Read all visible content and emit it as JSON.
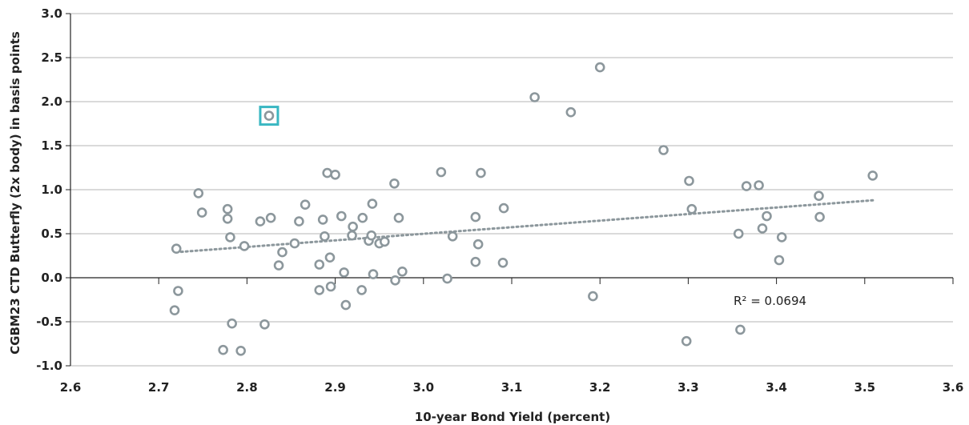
{
  "chart_data": {
    "type": "scatter",
    "xlabel": "10-year Bond Yield (percent)",
    "ylabel": "CGBM23 CTD Butterfly (2x body) in basis points",
    "xlim": [
      2.6,
      3.6
    ],
    "ylim": [
      -1.0,
      3.0
    ],
    "x_ticks": [
      "2.6",
      "2.7",
      "2.8",
      "2.9",
      "3.0",
      "3.1",
      "3.2",
      "3.3",
      "3.4",
      "3.5",
      "3.6"
    ],
    "y_ticks": [
      "3.0",
      "2.5",
      "2.0",
      "1.5",
      "1.0",
      "0.5",
      "0.0",
      "-0.5",
      "-1.0"
    ],
    "grid": "horizontal",
    "point_color": "#8c979c",
    "trend_color": "#8c979c",
    "highlight_color": "#3ab7c2",
    "trendline": {
      "x": [
        2.72,
        3.51
      ],
      "y": [
        0.29,
        0.88
      ],
      "style": "dotted",
      "r2_label": "R² = 0.0694"
    },
    "highlight": {
      "x": 2.825,
      "y": 1.84
    },
    "points": [
      {
        "x": 2.72,
        "y": 0.33
      },
      {
        "x": 2.722,
        "y": -0.15
      },
      {
        "x": 2.718,
        "y": -0.37
      },
      {
        "x": 2.745,
        "y": 0.96
      },
      {
        "x": 2.749,
        "y": 0.74
      },
      {
        "x": 2.778,
        "y": 0.78
      },
      {
        "x": 2.778,
        "y": 0.67
      },
      {
        "x": 2.781,
        "y": 0.46
      },
      {
        "x": 2.783,
        "y": -0.52
      },
      {
        "x": 2.773,
        "y": -0.82
      },
      {
        "x": 2.793,
        "y": -0.83
      },
      {
        "x": 2.797,
        "y": 0.36
      },
      {
        "x": 2.815,
        "y": 0.64
      },
      {
        "x": 2.82,
        "y": -0.53
      },
      {
        "x": 2.825,
        "y": 1.84
      },
      {
        "x": 2.827,
        "y": 0.68
      },
      {
        "x": 2.836,
        "y": 0.14
      },
      {
        "x": 2.84,
        "y": 0.29
      },
      {
        "x": 2.854,
        "y": 0.39
      },
      {
        "x": 2.859,
        "y": 0.64
      },
      {
        "x": 2.866,
        "y": 0.83
      },
      {
        "x": 2.882,
        "y": 0.15
      },
      {
        "x": 2.882,
        "y": -0.14
      },
      {
        "x": 2.886,
        "y": 0.66
      },
      {
        "x": 2.888,
        "y": 0.47
      },
      {
        "x": 2.891,
        "y": 1.19
      },
      {
        "x": 2.894,
        "y": 0.23
      },
      {
        "x": 2.895,
        "y": -0.1
      },
      {
        "x": 2.9,
        "y": 1.17
      },
      {
        "x": 2.907,
        "y": 0.7
      },
      {
        "x": 2.91,
        "y": 0.06
      },
      {
        "x": 2.912,
        "y": -0.31
      },
      {
        "x": 2.919,
        "y": 0.48
      },
      {
        "x": 2.92,
        "y": 0.58
      },
      {
        "x": 2.93,
        "y": -0.14
      },
      {
        "x": 2.931,
        "y": 0.68
      },
      {
        "x": 2.938,
        "y": 0.42
      },
      {
        "x": 2.941,
        "y": 0.48
      },
      {
        "x": 2.942,
        "y": 0.84
      },
      {
        "x": 2.943,
        "y": 0.04
      },
      {
        "x": 2.95,
        "y": 0.39
      },
      {
        "x": 2.956,
        "y": 0.41
      },
      {
        "x": 2.967,
        "y": 1.07
      },
      {
        "x": 2.968,
        "y": -0.03
      },
      {
        "x": 2.972,
        "y": 0.68
      },
      {
        "x": 2.976,
        "y": 0.07
      },
      {
        "x": 3.02,
        "y": 1.2
      },
      {
        "x": 3.027,
        "y": -0.01
      },
      {
        "x": 3.033,
        "y": 0.47
      },
      {
        "x": 3.059,
        "y": 0.69
      },
      {
        "x": 3.059,
        "y": 0.18
      },
      {
        "x": 3.062,
        "y": 0.38
      },
      {
        "x": 3.065,
        "y": 1.19
      },
      {
        "x": 3.091,
        "y": 0.79
      },
      {
        "x": 3.09,
        "y": 0.17
      },
      {
        "x": 3.126,
        "y": 2.05
      },
      {
        "x": 3.167,
        "y": 1.88
      },
      {
        "x": 3.192,
        "y": -0.21
      },
      {
        "x": 3.2,
        "y": 2.39
      },
      {
        "x": 3.272,
        "y": 1.45
      },
      {
        "x": 3.298,
        "y": -0.72
      },
      {
        "x": 3.301,
        "y": 1.1
      },
      {
        "x": 3.304,
        "y": 0.78
      },
      {
        "x": 3.357,
        "y": 0.5
      },
      {
        "x": 3.359,
        "y": -0.59
      },
      {
        "x": 3.366,
        "y": 1.04
      },
      {
        "x": 3.38,
        "y": 1.05
      },
      {
        "x": 3.384,
        "y": 0.56
      },
      {
        "x": 3.389,
        "y": 0.7
      },
      {
        "x": 3.403,
        "y": 0.2
      },
      {
        "x": 3.406,
        "y": 0.46
      },
      {
        "x": 3.448,
        "y": 0.93
      },
      {
        "x": 3.449,
        "y": 0.69
      },
      {
        "x": 3.509,
        "y": 1.16
      }
    ]
  }
}
